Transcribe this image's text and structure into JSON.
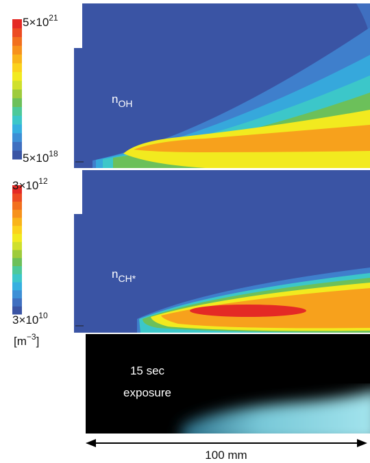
{
  "panels": [
    {
      "label": {
        "base": "n",
        "sub": "OH"
      },
      "max": {
        "base": "5×10",
        "exp": "21"
      },
      "min": {
        "base": "5×10",
        "exp": "18"
      }
    },
    {
      "label": {
        "base": "n",
        "sub": "CH*"
      },
      "max": {
        "base": "3×10",
        "exp": "12"
      },
      "min": {
        "base": "3×10",
        "exp": "10"
      }
    }
  ],
  "unit": {
    "open": "[m",
    "exp": "−3",
    "close": "]"
  },
  "photo": {
    "caption": [
      "15 sec",
      "exposure"
    ]
  },
  "scale": "100 mm"
}
